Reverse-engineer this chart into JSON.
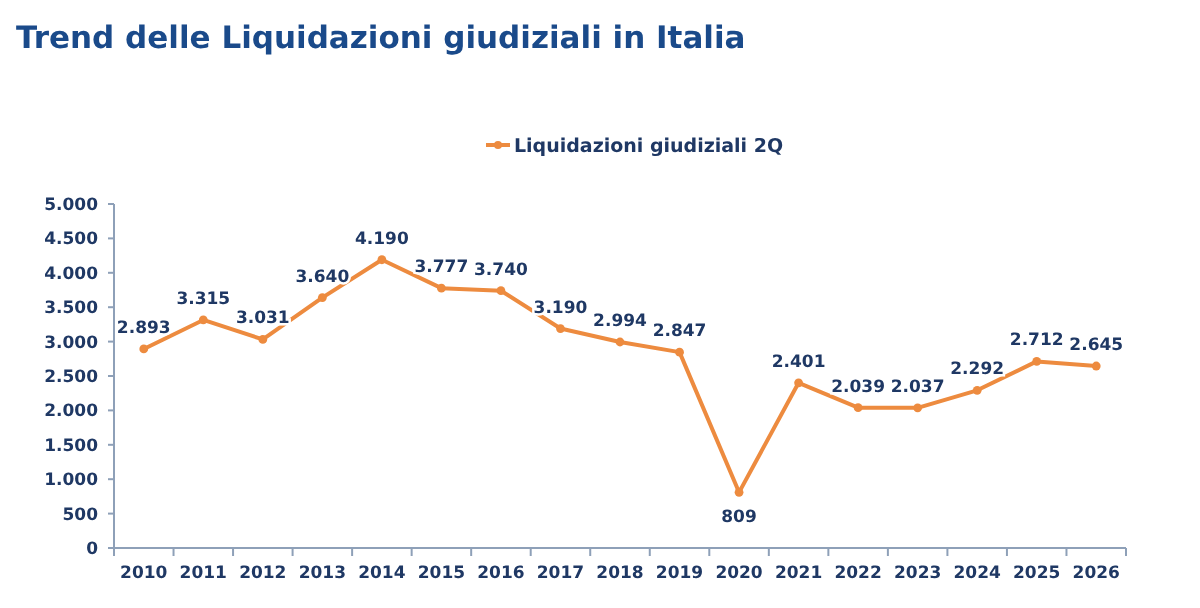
{
  "chart_data": {
    "type": "line",
    "title": "Trend delle Liquidazioni giudiziali in Italia",
    "categories": [
      "2010",
      "2011",
      "2012",
      "2013",
      "2014",
      "2015",
      "2016",
      "2017",
      "2018",
      "2019",
      "2020",
      "2021",
      "2022",
      "2023",
      "2024",
      "2025",
      "2026"
    ],
    "series": [
      {
        "name": "Liquidazioni giudiziali 2Q",
        "color": "#ed8b3f",
        "values": [
          2893,
          3315,
          3031,
          3640,
          4190,
          3777,
          3740,
          3190,
          2994,
          2847,
          809,
          2401,
          2039,
          2037,
          2292,
          2712,
          2645
        ],
        "value_labels": [
          "2.893",
          "3.315",
          "3.031",
          "3.640",
          "4.190",
          "3.777",
          "3.740",
          "3.190",
          "2.994",
          "2.847",
          "809",
          "2.401",
          "2.039",
          "2.037",
          "2.292",
          "2.712",
          "2.645"
        ]
      }
    ],
    "ylim": [
      0,
      5000
    ],
    "yticks": [
      0,
      {
        "value": 500,
        "label": "500"
      },
      {
        "value": 1000,
        "label": "1.000"
      },
      {
        "value": 1500,
        "label": "1.500"
      },
      {
        "value": 2000,
        "label": "2.000"
      },
      {
        "value": 2500,
        "label": "2.500"
      },
      {
        "value": 3000,
        "label": "3.000"
      },
      {
        "value": 3500,
        "label": "3.500"
      },
      {
        "value": 4000,
        "label": "4.000"
      },
      {
        "value": 4500,
        "label": "4.500"
      },
      {
        "value": 5000,
        "label": "5.000"
      }
    ],
    "legend": "top",
    "grid": false,
    "marker": "circle",
    "line_style": "solid"
  }
}
